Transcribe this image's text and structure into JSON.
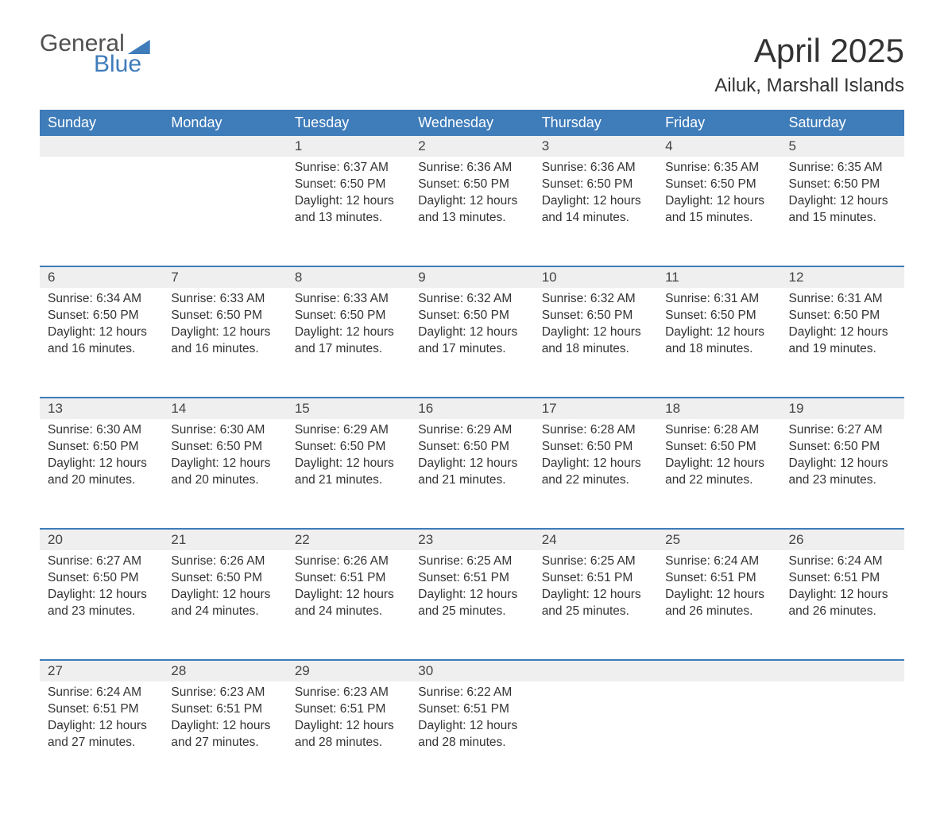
{
  "brand": {
    "line1": "General",
    "line2": "Blue",
    "brand_color": "#3f7cba",
    "text_color": "#505050"
  },
  "title": "April 2025",
  "location": "Ailuk, Marshall Islands",
  "header_bg": "#3f7cba",
  "header_fg": "#ffffff",
  "daynum_bg": "#efefef",
  "rule_color": "#3f7cba",
  "days_of_week": [
    "Sunday",
    "Monday",
    "Tuesday",
    "Wednesday",
    "Thursday",
    "Friday",
    "Saturday"
  ],
  "weeks": [
    [
      null,
      null,
      {
        "n": "1",
        "sr": "6:37 AM",
        "ss": "6:50 PM",
        "dl": "12 hours and 13 minutes."
      },
      {
        "n": "2",
        "sr": "6:36 AM",
        "ss": "6:50 PM",
        "dl": "12 hours and 13 minutes."
      },
      {
        "n": "3",
        "sr": "6:36 AM",
        "ss": "6:50 PM",
        "dl": "12 hours and 14 minutes."
      },
      {
        "n": "4",
        "sr": "6:35 AM",
        "ss": "6:50 PM",
        "dl": "12 hours and 15 minutes."
      },
      {
        "n": "5",
        "sr": "6:35 AM",
        "ss": "6:50 PM",
        "dl": "12 hours and 15 minutes."
      }
    ],
    [
      {
        "n": "6",
        "sr": "6:34 AM",
        "ss": "6:50 PM",
        "dl": "12 hours and 16 minutes."
      },
      {
        "n": "7",
        "sr": "6:33 AM",
        "ss": "6:50 PM",
        "dl": "12 hours and 16 minutes."
      },
      {
        "n": "8",
        "sr": "6:33 AM",
        "ss": "6:50 PM",
        "dl": "12 hours and 17 minutes."
      },
      {
        "n": "9",
        "sr": "6:32 AM",
        "ss": "6:50 PM",
        "dl": "12 hours and 17 minutes."
      },
      {
        "n": "10",
        "sr": "6:32 AM",
        "ss": "6:50 PM",
        "dl": "12 hours and 18 minutes."
      },
      {
        "n": "11",
        "sr": "6:31 AM",
        "ss": "6:50 PM",
        "dl": "12 hours and 18 minutes."
      },
      {
        "n": "12",
        "sr": "6:31 AM",
        "ss": "6:50 PM",
        "dl": "12 hours and 19 minutes."
      }
    ],
    [
      {
        "n": "13",
        "sr": "6:30 AM",
        "ss": "6:50 PM",
        "dl": "12 hours and 20 minutes."
      },
      {
        "n": "14",
        "sr": "6:30 AM",
        "ss": "6:50 PM",
        "dl": "12 hours and 20 minutes."
      },
      {
        "n": "15",
        "sr": "6:29 AM",
        "ss": "6:50 PM",
        "dl": "12 hours and 21 minutes."
      },
      {
        "n": "16",
        "sr": "6:29 AM",
        "ss": "6:50 PM",
        "dl": "12 hours and 21 minutes."
      },
      {
        "n": "17",
        "sr": "6:28 AM",
        "ss": "6:50 PM",
        "dl": "12 hours and 22 minutes."
      },
      {
        "n": "18",
        "sr": "6:28 AM",
        "ss": "6:50 PM",
        "dl": "12 hours and 22 minutes."
      },
      {
        "n": "19",
        "sr": "6:27 AM",
        "ss": "6:50 PM",
        "dl": "12 hours and 23 minutes."
      }
    ],
    [
      {
        "n": "20",
        "sr": "6:27 AM",
        "ss": "6:50 PM",
        "dl": "12 hours and 23 minutes."
      },
      {
        "n": "21",
        "sr": "6:26 AM",
        "ss": "6:50 PM",
        "dl": "12 hours and 24 minutes."
      },
      {
        "n": "22",
        "sr": "6:26 AM",
        "ss": "6:51 PM",
        "dl": "12 hours and 24 minutes."
      },
      {
        "n": "23",
        "sr": "6:25 AM",
        "ss": "6:51 PM",
        "dl": "12 hours and 25 minutes."
      },
      {
        "n": "24",
        "sr": "6:25 AM",
        "ss": "6:51 PM",
        "dl": "12 hours and 25 minutes."
      },
      {
        "n": "25",
        "sr": "6:24 AM",
        "ss": "6:51 PM",
        "dl": "12 hours and 26 minutes."
      },
      {
        "n": "26",
        "sr": "6:24 AM",
        "ss": "6:51 PM",
        "dl": "12 hours and 26 minutes."
      }
    ],
    [
      {
        "n": "27",
        "sr": "6:24 AM",
        "ss": "6:51 PM",
        "dl": "12 hours and 27 minutes."
      },
      {
        "n": "28",
        "sr": "6:23 AM",
        "ss": "6:51 PM",
        "dl": "12 hours and 27 minutes."
      },
      {
        "n": "29",
        "sr": "6:23 AM",
        "ss": "6:51 PM",
        "dl": "12 hours and 28 minutes."
      },
      {
        "n": "30",
        "sr": "6:22 AM",
        "ss": "6:51 PM",
        "dl": "12 hours and 28 minutes."
      },
      null,
      null,
      null
    ]
  ],
  "labels": {
    "sunrise": "Sunrise:",
    "sunset": "Sunset:",
    "daylight": "Daylight:"
  }
}
